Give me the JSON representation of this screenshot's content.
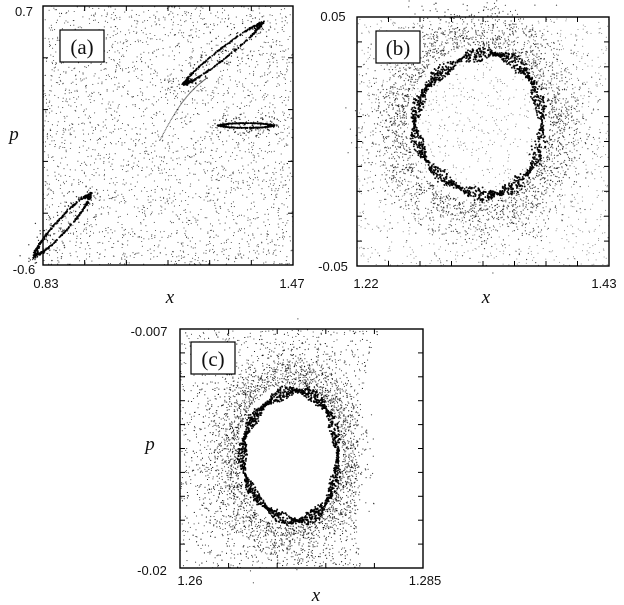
{
  "chart_data": [
    {
      "type": "scatter",
      "panel": "(a)",
      "xlabel": "x",
      "ylabel": "p",
      "xlim": [
        0.83,
        1.47
      ],
      "ylim": [
        -0.6,
        0.7
      ],
      "x_tick_labels": [
        "0.83",
        "1.47"
      ],
      "y_tick_labels": [
        "-0.6",
        "0.7"
      ],
      "background_scatter": "chaotic sea of points filling the panel",
      "structures": [
        {
          "kind": "island",
          "cx": 1.29,
          "cy": 0.46,
          "length": 0.24,
          "angle_deg": 38
        },
        {
          "kind": "island",
          "cx": 1.35,
          "cy": 0.1,
          "length": 0.13,
          "angle_deg": 0
        },
        {
          "kind": "island",
          "cx": 0.88,
          "cy": -0.4,
          "length": 0.2,
          "angle_deg": 48
        },
        {
          "kind": "dotted-curve",
          "from": [
            1.13,
            0.03
          ],
          "to": [
            1.25,
            0.34
          ]
        }
      ]
    },
    {
      "type": "scatter",
      "panel": "(b)",
      "xlabel": "x",
      "ylabel": "",
      "xlim": [
        1.22,
        1.43
      ],
      "ylim": [
        -0.05,
        0.05
      ],
      "x_tick_labels": [
        "1.22",
        "1.43"
      ],
      "y_tick_labels": [
        "0.05",
        "-0.05"
      ],
      "background_scatter": "sparse points, dense halo around the central chain",
      "structures": [
        {
          "kind": "island-chain",
          "cx": 1.321,
          "cy": 0.007,
          "rx": 0.053,
          "ry": 0.028,
          "lobes": 10
        }
      ]
    },
    {
      "type": "scatter",
      "panel": "(c)",
      "xlabel": "x",
      "ylabel": "p",
      "xlim": [
        1.26,
        1.285
      ],
      "ylim": [
        -0.02,
        -0.007
      ],
      "x_tick_labels": [
        "1.26",
        "1.285"
      ],
      "y_tick_labels": [
        "-0.007",
        "-0.02"
      ],
      "background_scatter": "dense points bounded on the right by a curved edge",
      "structures": [
        {
          "kind": "island-chain",
          "cx": 1.2713,
          "cy": -0.0139,
          "rx": 0.0049,
          "ry": 0.0035,
          "lobes": 9
        }
      ]
    }
  ]
}
